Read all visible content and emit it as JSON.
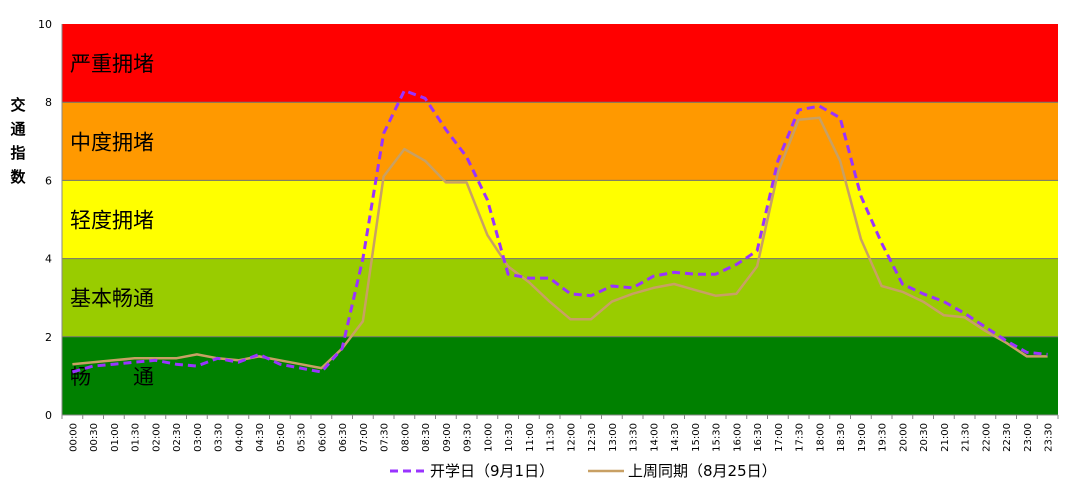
{
  "chart_data": {
    "type": "line",
    "title": "",
    "ylabel": "交通指数",
    "xlabel": "",
    "ylim": [
      0,
      10
    ],
    "yticks": [
      0,
      2,
      4,
      6,
      8,
      10
    ],
    "grid": false,
    "legend_position": "bottom",
    "bands": [
      {
        "from": 0,
        "to": 2,
        "label": "畅　　通",
        "color": "#008000"
      },
      {
        "from": 2,
        "to": 4,
        "label": "基本畅通",
        "color": "#99cc00"
      },
      {
        "from": 4,
        "to": 6,
        "label": "轻度拥堵",
        "color": "#ffff00"
      },
      {
        "from": 6,
        "to": 8,
        "label": "中度拥堵",
        "color": "#ff9900"
      },
      {
        "from": 8,
        "to": 10,
        "label": "严重拥堵",
        "color": "#ff0000"
      }
    ],
    "x": [
      "00:00",
      "00:30",
      "01:00",
      "01:30",
      "02:00",
      "02:30",
      "03:00",
      "03:30",
      "04:00",
      "04:30",
      "05:00",
      "05:30",
      "06:00",
      "06:30",
      "07:00",
      "07:30",
      "08:00",
      "08:30",
      "09:00",
      "09:30",
      "10:00",
      "10:30",
      "11:00",
      "11:30",
      "12:00",
      "12:30",
      "13:00",
      "13:30",
      "14:00",
      "14:30",
      "15:00",
      "15:30",
      "16:00",
      "16:30",
      "17:00",
      "17:30",
      "18:00",
      "18:30",
      "19:00",
      "19:30",
      "20:00",
      "20:30",
      "21:00",
      "21:30",
      "22:00",
      "22:30",
      "23:00",
      "23:30"
    ],
    "series": [
      {
        "name": "开学日（9月1日）",
        "color": "#9933ff",
        "style": "dashed",
        "values": [
          1.1,
          1.25,
          1.3,
          1.35,
          1.4,
          1.3,
          1.25,
          1.45,
          1.35,
          1.55,
          1.3,
          1.2,
          1.1,
          1.7,
          4.0,
          7.2,
          8.3,
          8.1,
          7.3,
          6.6,
          5.5,
          3.6,
          3.5,
          3.5,
          3.1,
          3.05,
          3.3,
          3.25,
          3.55,
          3.65,
          3.6,
          3.6,
          3.85,
          4.2,
          6.5,
          7.8,
          7.9,
          7.6,
          5.6,
          4.4,
          3.35,
          3.1,
          2.9,
          2.6,
          2.25,
          1.9,
          1.6,
          1.55
        ]
      },
      {
        "name": "上周同期（8月25日）",
        "color": "#c8a064",
        "style": "solid",
        "values": [
          1.3,
          1.35,
          1.4,
          1.45,
          1.45,
          1.45,
          1.55,
          1.45,
          1.4,
          1.5,
          1.4,
          1.3,
          1.2,
          1.7,
          2.4,
          6.1,
          6.8,
          6.5,
          5.95,
          5.95,
          4.6,
          3.8,
          3.4,
          2.9,
          2.45,
          2.45,
          2.9,
          3.1,
          3.25,
          3.35,
          3.2,
          3.05,
          3.1,
          3.8,
          6.2,
          7.55,
          7.6,
          6.5,
          4.5,
          3.3,
          3.15,
          2.9,
          2.55,
          2.5,
          2.15,
          1.85,
          1.5,
          1.5
        ]
      }
    ]
  }
}
